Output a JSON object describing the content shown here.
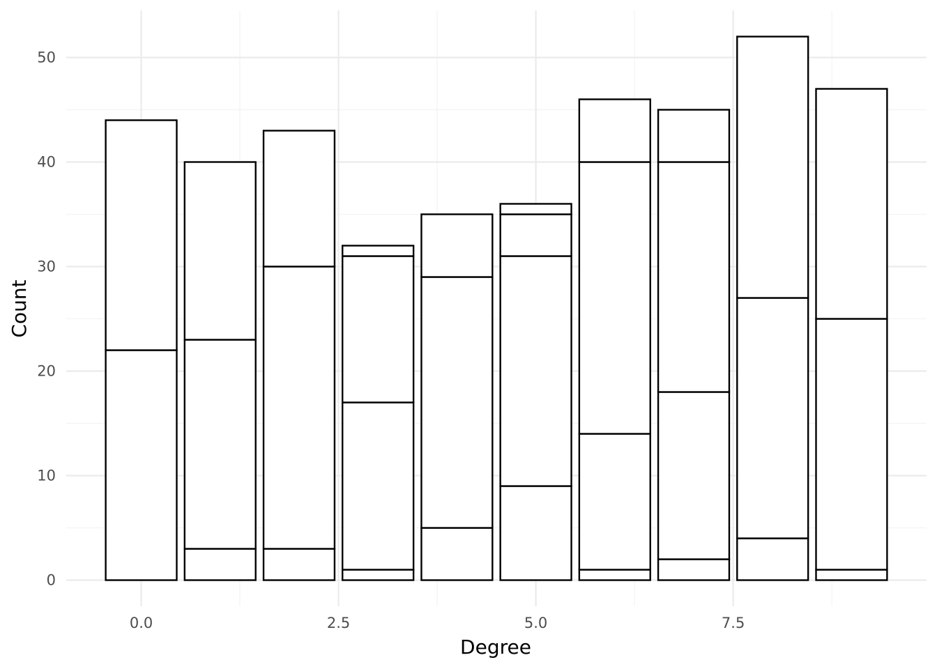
{
  "chart_data": {
    "type": "bar",
    "stacked": true,
    "xlabel": "Degree",
    "ylabel": "Count",
    "xlim": [
      -0.95,
      9.95
    ],
    "ylim": [
      -2.5,
      54.5
    ],
    "x_ticks": [
      0.0,
      2.5,
      5.0,
      7.5
    ],
    "x_tick_labels": [
      "0.0",
      "2.5",
      "5.0",
      "7.5"
    ],
    "y_ticks": [
      0,
      10,
      20,
      30,
      40,
      50
    ],
    "y_tick_labels": [
      "0",
      "10",
      "20",
      "30",
      "40",
      "50"
    ],
    "grid": true,
    "bar_width": 0.9,
    "bars": [
      {
        "x": 0,
        "cumulative": [
          22,
          44
        ]
      },
      {
        "x": 1,
        "cumulative": [
          3,
          23,
          40
        ]
      },
      {
        "x": 2,
        "cumulative": [
          3,
          30,
          43
        ]
      },
      {
        "x": 3,
        "cumulative": [
          1,
          17,
          31,
          32
        ]
      },
      {
        "x": 4,
        "cumulative": [
          5,
          29,
          35
        ]
      },
      {
        "x": 5,
        "cumulative": [
          9,
          31,
          35,
          36
        ]
      },
      {
        "x": 6,
        "cumulative": [
          1,
          14,
          40,
          46
        ]
      },
      {
        "x": 7,
        "cumulative": [
          2,
          18,
          40,
          45
        ]
      },
      {
        "x": 8,
        "cumulative": [
          4,
          27,
          52
        ]
      },
      {
        "x": 9,
        "cumulative": [
          1,
          25,
          47
        ]
      }
    ],
    "bar_fill": "#ffffff",
    "bar_stroke": "#000000",
    "grid_color": "#ebebeb"
  }
}
